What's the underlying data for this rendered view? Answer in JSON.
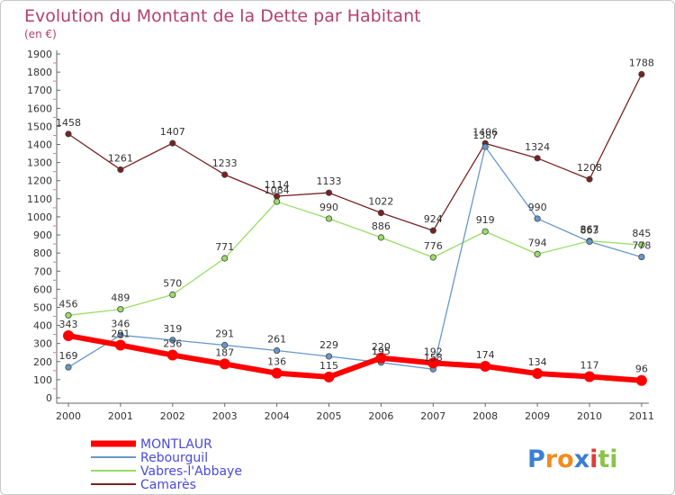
{
  "chart_data": {
    "type": "line",
    "title": "Evolution du Montant de la Dette par Habitant",
    "subtitle": "(en €)",
    "x": [
      "2000",
      "2001",
      "2002",
      "2003",
      "2004",
      "2005",
      "2006",
      "2007",
      "2008",
      "2009",
      "2010",
      "2011"
    ],
    "yticks": [
      "0",
      "100",
      "200",
      "300",
      "400",
      "500",
      "600",
      "700",
      "800",
      "900",
      "1000",
      "1100",
      "1200",
      "1300",
      "1400",
      "1500",
      "1600",
      "1700",
      "1800",
      "1900"
    ],
    "ylim": [
      0,
      1900
    ],
    "grid": false,
    "legend_position": "bottom-left",
    "series": [
      {
        "name": "MONTLAUR",
        "color": "#ff0000",
        "values": [
          343,
          291,
          236,
          187,
          136,
          115,
          220,
          192,
          174,
          134,
          117,
          96
        ],
        "labels": [
          "343",
          "291",
          "236",
          "187",
          "136",
          "115",
          "220",
          "192",
          "174",
          "134",
          "117",
          "96"
        ]
      },
      {
        "name": "Rebourguil",
        "color": "#6699cc",
        "values": [
          169,
          346,
          319,
          291,
          261,
          229,
          195,
          158,
          1387,
          990,
          863,
          778
        ],
        "labels": [
          "169",
          "346",
          "319",
          "291",
          "261",
          "229",
          "195",
          "158",
          "1387",
          "990",
          "863",
          "778"
        ]
      },
      {
        "name": "Vabres-l'Abbaye",
        "color": "#99dd66",
        "values": [
          456,
          489,
          570,
          771,
          1084,
          990,
          886,
          776,
          919,
          794,
          867,
          845
        ],
        "labels": [
          "456",
          "489",
          "570",
          "771",
          "1084",
          "990",
          "886",
          "776",
          "919",
          "794",
          "867",
          "845"
        ]
      },
      {
        "name": "Camarès",
        "color": "#772222",
        "values": [
          1458,
          1261,
          1407,
          1233,
          1114,
          1133,
          1022,
          924,
          1406,
          1324,
          1208,
          1788
        ],
        "labels": [
          "1458",
          "1261",
          "1407",
          "1233",
          "1114",
          "1133",
          "1022",
          "924",
          "1406",
          "1324",
          "1208",
          "1788"
        ]
      }
    ]
  },
  "logo": {
    "letters": [
      "P",
      "r",
      "o",
      "x",
      "i",
      "t",
      "i"
    ],
    "colors": [
      "#3a7fd0",
      "#f08c1e",
      "#f08c1e",
      "#3a7fd0",
      "#e53935",
      "#8bc34a",
      "#8bc34a"
    ]
  }
}
